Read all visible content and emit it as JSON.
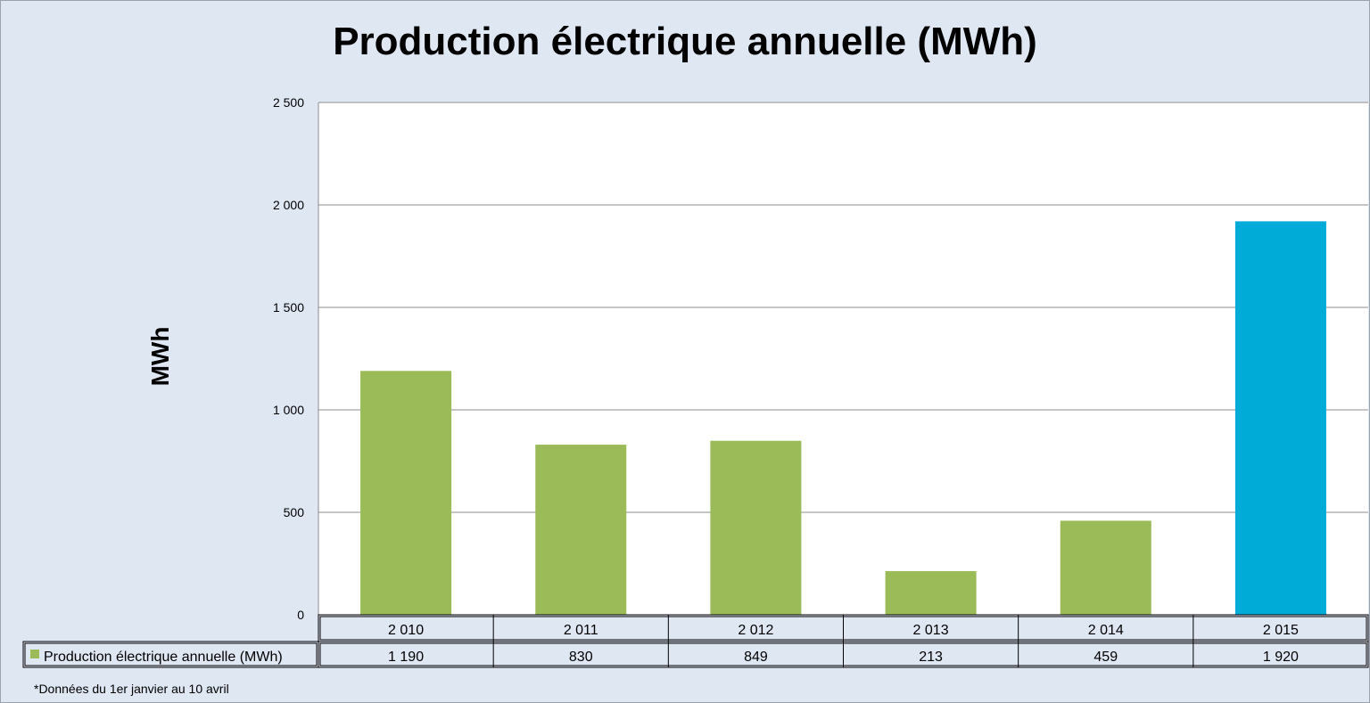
{
  "colors": {
    "background": "#dfe7f3",
    "plot_background": "#ffffff",
    "bar_default": "#9bbb59",
    "bar_highlight": "#00abd8",
    "gridline": "#8c8c8c"
  },
  "footnote": "*Données  du 1er janvier au 10 avril",
  "chart_data": {
    "type": "bar",
    "title": "Production électrique annuelle (MWh)",
    "xlabel": "",
    "ylabel": "MWh",
    "ylim": [
      0,
      2500
    ],
    "yticks": [
      0,
      500,
      1000,
      1500,
      2000,
      2500
    ],
    "ytick_labels": [
      "0",
      "500",
      "1 000",
      "1 500",
      "2 000",
      "2 500"
    ],
    "grid": true,
    "categories": [
      "2 010",
      "2 011",
      "2 012",
      "2 013",
      "2 014",
      "2 015"
    ],
    "series": [
      {
        "name": "Production électrique annuelle (MWh)",
        "values": [
          1190,
          830,
          849,
          213,
          459,
          1920
        ],
        "value_labels": [
          "1 190",
          "830",
          "849",
          "213",
          "459",
          "1 920"
        ]
      }
    ],
    "highlighted_category": "2 015",
    "data_table": true,
    "legend": "data-table-left"
  }
}
